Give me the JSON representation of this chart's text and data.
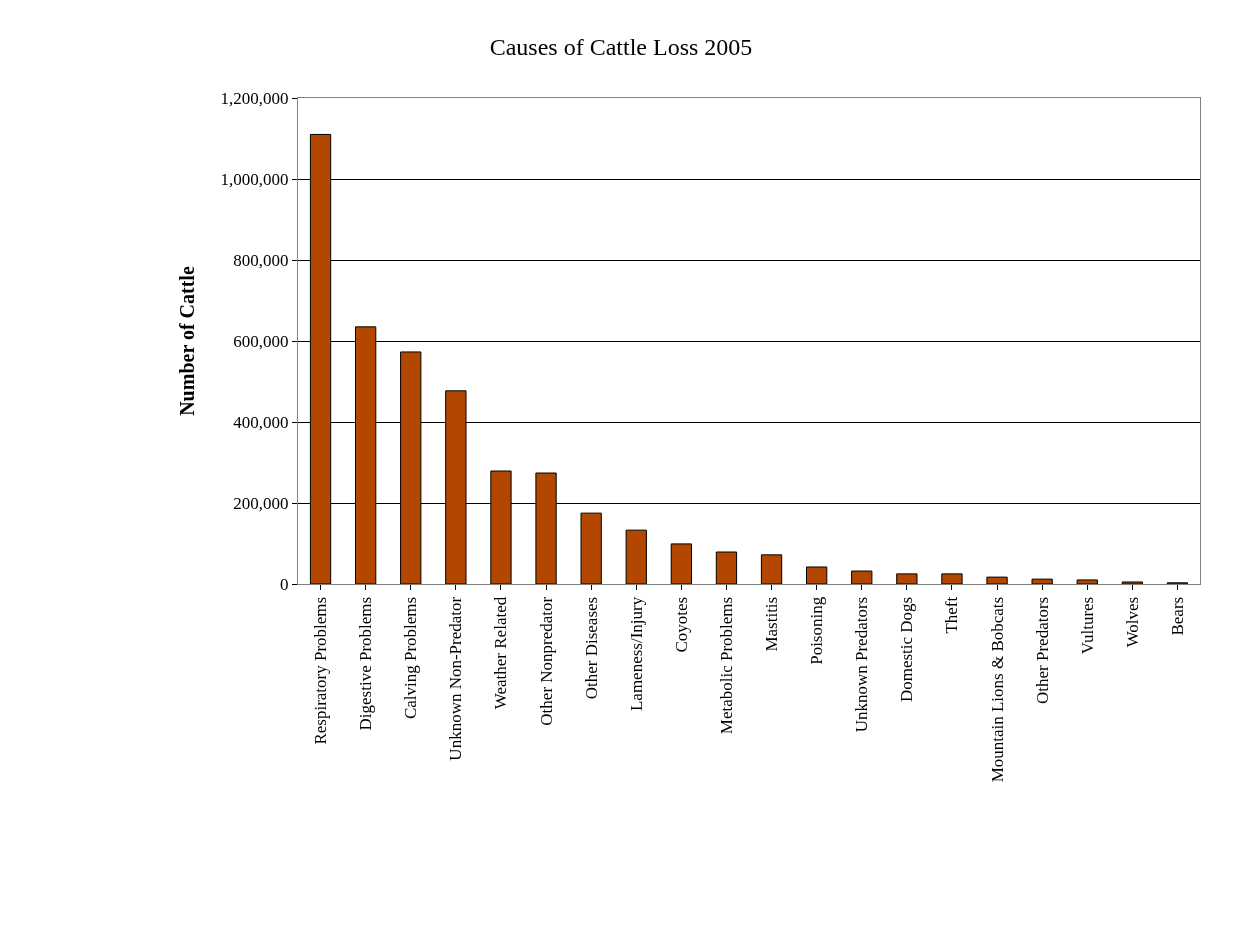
{
  "chart_data": {
    "type": "bar",
    "title": "Causes of Cattle Loss 2005",
    "ylabel": "Number of Cattle",
    "categories": [
      "Respiratory Problems",
      "Digestive Problems",
      "Calving Problems",
      "Unknown Non-Predator",
      "Weather Related",
      "Other Nonpredator",
      "Other Diseases",
      "Lameness/Injury",
      "Coyotes",
      "Metabolic Problems",
      "Mastitis",
      "Poisoning",
      "Unknown Predators",
      "Domestic Dogs",
      "Theft",
      "Mountain Lions & Bobcats",
      "Other Predators",
      "Vultures",
      "Wolves",
      "Bears"
    ],
    "values": [
      1110000,
      635000,
      573000,
      477000,
      279000,
      274000,
      175000,
      133000,
      99000,
      79000,
      72000,
      42000,
      32000,
      25000,
      25000,
      17000,
      12000,
      10000,
      5000,
      3000
    ],
    "color": "#b34700",
    "ylim": [
      0,
      1200000
    ],
    "yticks": [
      {
        "value": 0,
        "label": "0"
      },
      {
        "value": 200000,
        "label": "200,000"
      },
      {
        "value": 400000,
        "label": "400,000"
      },
      {
        "value": 600000,
        "label": "600,000"
      },
      {
        "value": 800000,
        "label": "800,000"
      },
      {
        "value": 1000000,
        "label": "1,000,000"
      },
      {
        "value": 1200000,
        "label": "1,200,000"
      }
    ],
    "grid": "y"
  }
}
